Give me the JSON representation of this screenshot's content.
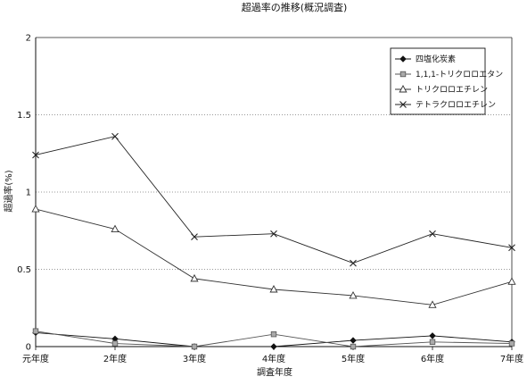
{
  "chart_data": {
    "type": "line",
    "title": "超過率の推移(概況調査)",
    "xlabel": "調査年度",
    "ylabel": "超過率(%)",
    "categories": [
      "元年度",
      "2年度",
      "3年度",
      "4年度",
      "5年度",
      "6年度",
      "7年度"
    ],
    "y_ticks": [
      "0",
      "0.5",
      "1",
      "1.5",
      "2"
    ],
    "ylim": [
      0,
      2
    ],
    "grid": "horizontal dotted",
    "legend_position": "top-right",
    "series": [
      {
        "name": "四塩化炭素",
        "marker": "diamond",
        "color": "#111111",
        "values": [
          0.09,
          0.05,
          0,
          0,
          0.04,
          0.07,
          0.03
        ]
      },
      {
        "name": "1,1,1-トリクロロエタン",
        "marker": "square",
        "color": "#555555",
        "values": [
          0.1,
          0.02,
          0,
          0.08,
          0,
          0.03,
          0.02
        ]
      },
      {
        "name": "トリクロロエチレン",
        "marker": "triangle",
        "color": "#333333",
        "values": [
          0.89,
          0.76,
          0.44,
          0.37,
          0.33,
          0.27,
          0.42
        ]
      },
      {
        "name": "テトラクロロエチレン",
        "marker": "x",
        "color": "#222222",
        "values": [
          1.24,
          1.36,
          0.71,
          0.73,
          0.54,
          0.73,
          0.64
        ]
      }
    ]
  }
}
